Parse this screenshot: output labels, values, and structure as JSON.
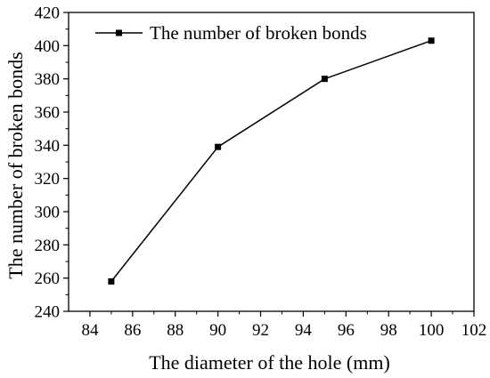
{
  "chart_data": {
    "type": "line",
    "title": "",
    "xlabel": "The diameter of the hole (mm)",
    "ylabel": "The number of broken bonds",
    "xlim": [
      83,
      102
    ],
    "ylim": [
      240,
      420
    ],
    "xticks": [
      84,
      86,
      88,
      90,
      92,
      94,
      96,
      98,
      100,
      102
    ],
    "yticks": [
      240,
      260,
      280,
      300,
      320,
      340,
      360,
      380,
      400,
      420
    ],
    "grid": false,
    "legend_position": "top-left",
    "series": [
      {
        "name": "The number of broken bonds",
        "color": "#000000",
        "marker": "square",
        "x": [
          85,
          90,
          95,
          100
        ],
        "y": [
          258,
          339,
          380,
          403
        ]
      }
    ]
  }
}
